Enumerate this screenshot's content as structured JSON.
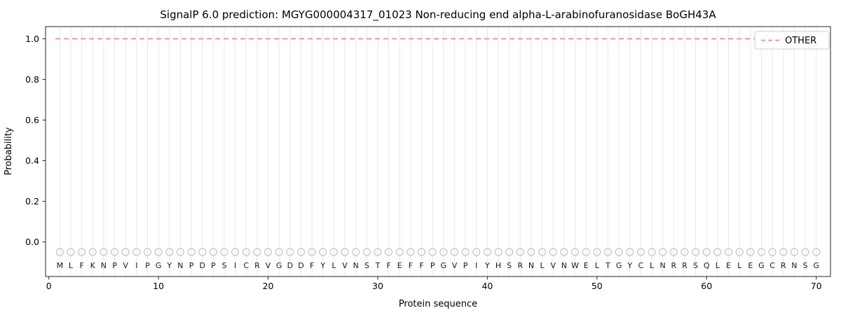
{
  "chart_data": {
    "type": "line",
    "title": "SignalP 6.0 prediction: MGYG000004317_01023 Non-reducing end alpha-L-arabinofuranosidase BoGH43A",
    "xlabel": "Protein sequence",
    "ylabel": "Probability",
    "xlim": [
      -0.3,
      71.3
    ],
    "ylim": [
      -0.17,
      1.06
    ],
    "xticks": [
      0,
      10,
      20,
      30,
      40,
      50,
      60,
      70
    ],
    "yticks": [
      0.0,
      0.2,
      0.4,
      0.6,
      0.8,
      1.0
    ],
    "grid": {
      "show": true,
      "orientation": "vertical",
      "per_residue": true,
      "color": "#e7e7e7"
    },
    "series": [
      {
        "name": "OTHER",
        "style": "dashed",
        "color": "#f28080",
        "y_constant": 1.0,
        "x_start": 0.6,
        "x_end": 71.0
      }
    ],
    "sequence": "MLFKNPVIPGYNPDPSICRVGDDFYLVNSTFEFFPGVPIYHSRNLVNWELTGYCLNRRSQLELEGCRNSG",
    "sequence_length": 70,
    "sequence_markers": {
      "shape": "open-circle",
      "y": -0.05,
      "stroke": "#c2c2c2",
      "radius": 5
    },
    "sequence_letters_y": -0.115,
    "legend": {
      "position": "upper right",
      "entries": [
        {
          "label": "OTHER",
          "color": "#f28080",
          "dashed": true
        }
      ]
    },
    "axis_color": "#262626"
  }
}
